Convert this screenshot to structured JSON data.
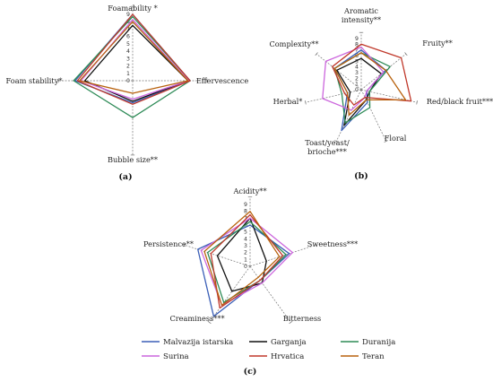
{
  "legend": [
    "Malvazija istarska",
    "Garganja",
    "Duranija",
    "Surina",
    "Hrvatica",
    "Teran"
  ],
  "colors": {
    "Malvazija istarska": "#3b5fb7",
    "Garganja": "#111111",
    "Duranija": "#2e8b57",
    "Surina": "#cc66dd",
    "Hrvatica": "#c0392b",
    "Teran": "#b8620e"
  },
  "chart_data": [
    {
      "type": "radar",
      "panel_label": "(a)",
      "axes": [
        "Foamability *",
        "Effervescence",
        "Bubble size**",
        "Foam stability*"
      ],
      "r_range": [
        0,
        9
      ],
      "r_ticks": [
        "0",
        "1",
        "2",
        "3",
        "4",
        "5",
        "6",
        "7",
        "8",
        "9"
      ],
      "series": [
        {
          "name": "Malvazija istarska",
          "values": [
            9.0,
            7.8,
            3.0,
            7.8
          ]
        },
        {
          "name": "Garganja",
          "values": [
            7.5,
            7.5,
            2.8,
            6.5
          ]
        },
        {
          "name": "Duranija",
          "values": [
            8.7,
            7.8,
            5.0,
            8.0
          ]
        },
        {
          "name": "Surina",
          "values": [
            8.3,
            7.6,
            2.5,
            7.0
          ]
        },
        {
          "name": "Hrvatica",
          "values": [
            9.0,
            7.8,
            3.2,
            7.5
          ]
        },
        {
          "name": "Teran",
          "values": [
            8.0,
            7.5,
            1.7,
            7.2
          ]
        }
      ]
    },
    {
      "type": "radar",
      "panel_label": "(b)",
      "axes": [
        "Aromatic intensity**",
        "Fruity**",
        "Red/black fruit***",
        "Floral",
        "Toast/yeast/ brioche***",
        "Herbal*",
        "Complexity**"
      ],
      "r_range": [
        0,
        9
      ],
      "r_ticks": [
        "0",
        "1",
        "2",
        "3",
        "4",
        "5",
        "6",
        "7",
        "8",
        "9"
      ],
      "series": [
        {
          "name": "Malvazija istarska",
          "values": [
            7.0,
            5.5,
            1.0,
            2.5,
            8.0,
            2.5,
            6.0
          ]
        },
        {
          "name": "Garganja",
          "values": [
            5.5,
            4.5,
            1.5,
            2.0,
            7.0,
            2.0,
            5.5
          ]
        },
        {
          "name": "Duranija",
          "values": [
            6.5,
            6.5,
            1.5,
            3.5,
            6.5,
            3.5,
            6.0
          ]
        },
        {
          "name": "Surina",
          "values": [
            7.5,
            5.0,
            1.0,
            1.5,
            4.0,
            7.0,
            8.0
          ]
        },
        {
          "name": "Hrvatica",
          "values": [
            8.0,
            9.0,
            9.0,
            1.5,
            3.0,
            3.0,
            6.5
          ]
        },
        {
          "name": "Teran",
          "values": [
            6.5,
            5.5,
            8.0,
            2.0,
            5.0,
            2.5,
            6.0
          ]
        }
      ]
    },
    {
      "type": "radar",
      "panel_label": "(c)",
      "axes": [
        "Acidity**",
        "Sweetness***",
        "Bitterness",
        "Creaminess***",
        "Persistence**"
      ],
      "r_range": [
        0,
        9
      ],
      "r_ticks": [
        "0",
        "1",
        "2",
        "3",
        "4",
        "5",
        "6",
        "7",
        "8",
        "9"
      ],
      "series": [
        {
          "name": "Malvazija istarska",
          "values": [
            6.0,
            6.0,
            2.5,
            9.0,
            8.0
          ]
        },
        {
          "name": "Garganja",
          "values": [
            7.0,
            2.5,
            3.0,
            4.5,
            5.0
          ]
        },
        {
          "name": "Duranija",
          "values": [
            6.5,
            5.5,
            2.5,
            6.5,
            6.5
          ]
        },
        {
          "name": "Surina",
          "values": [
            7.0,
            6.5,
            3.0,
            7.0,
            7.5
          ]
        },
        {
          "name": "Hrvatica",
          "values": [
            7.5,
            5.0,
            2.5,
            7.5,
            6.0
          ]
        },
        {
          "name": "Teran",
          "values": [
            8.0,
            4.5,
            2.0,
            7.0,
            7.0
          ]
        }
      ]
    }
  ]
}
